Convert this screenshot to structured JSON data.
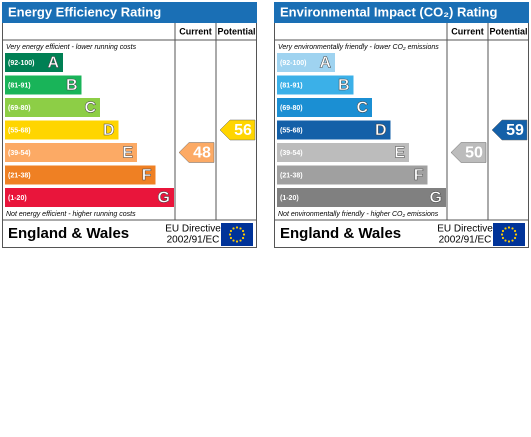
{
  "panels": [
    {
      "title": "Energy Efficiency Rating",
      "current_header": "Current",
      "potential_header": "Potential",
      "top_note": "Very energy efficient - lower running costs",
      "bottom_note": "Not energy efficient - higher running costs",
      "bands": [
        {
          "range": "(92-100)",
          "letter": "A",
          "color": "#008054"
        },
        {
          "range": "(81-91)",
          "letter": "B",
          "color": "#19b459"
        },
        {
          "range": "(69-80)",
          "letter": "C",
          "color": "#8dce46"
        },
        {
          "range": "(55-68)",
          "letter": "D",
          "color": "#ffd500"
        },
        {
          "range": "(39-54)",
          "letter": "E",
          "color": "#fcaa65"
        },
        {
          "range": "(21-38)",
          "letter": "F",
          "color": "#ef8023"
        },
        {
          "range": "(1-20)",
          "letter": "G",
          "color": "#e9153b"
        }
      ],
      "current": 48,
      "potential": 56,
      "region": "England & Wales",
      "directive": [
        "EU Directive",
        "2002/91/EC"
      ]
    },
    {
      "title": "Environmental Impact (CO₂) Rating",
      "current_header": "Current",
      "potential_header": "Potential",
      "top_note": "Very environmentally friendly - lower CO₂ emissions",
      "bottom_note": "Not environmentally friendly - higher CO₂ emissions",
      "bands": [
        {
          "range": "(92-100)",
          "letter": "A",
          "color": "#9fd3f0"
        },
        {
          "range": "(81-91)",
          "letter": "B",
          "color": "#3bb0e8"
        },
        {
          "range": "(69-80)",
          "letter": "C",
          "color": "#1b8fd3"
        },
        {
          "range": "(55-68)",
          "letter": "D",
          "color": "#1460a8"
        },
        {
          "range": "(39-54)",
          "letter": "E",
          "color": "#bcbcbc"
        },
        {
          "range": "(21-38)",
          "letter": "F",
          "color": "#a0a0a0"
        },
        {
          "range": "(1-20)",
          "letter": "G",
          "color": "#808080"
        }
      ],
      "current": 50,
      "potential": 59,
      "region": "England & Wales",
      "directive": [
        "EU Directive",
        "2002/91/EC"
      ]
    }
  ]
}
